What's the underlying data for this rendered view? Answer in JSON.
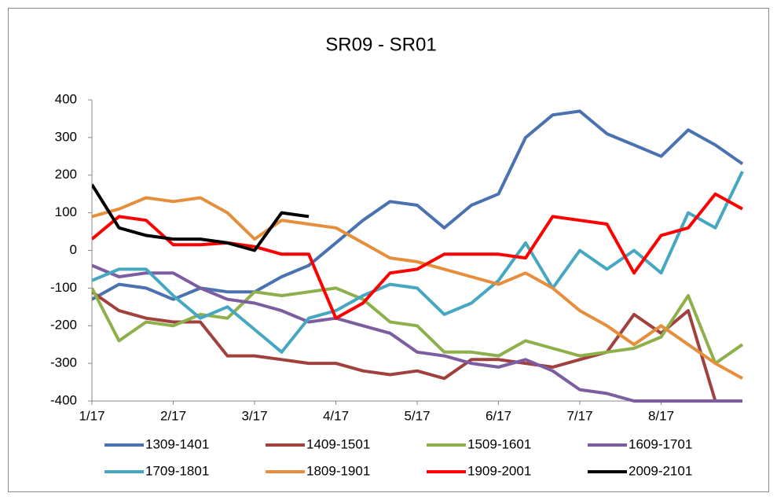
{
  "chart_data": {
    "type": "line",
    "title": "SR09 - SR01",
    "categories": [
      "1/17",
      null,
      null,
      "2/17",
      null,
      null,
      "3/17",
      null,
      null,
      "4/17",
      null,
      null,
      "5/17",
      null,
      null,
      "6/17",
      null,
      null,
      "7/17",
      null,
      null,
      "8/17",
      null,
      null,
      null
    ],
    "ylim": [
      -400,
      400
    ],
    "yticks": [
      -400,
      -300,
      -200,
      -100,
      0,
      100,
      200,
      300,
      400
    ],
    "grid": false,
    "legend": "bottom",
    "series": [
      {
        "name": "1309-1401",
        "color": "#4a72b0",
        "values": [
          -130,
          -90,
          -100,
          -130,
          -100,
          -110,
          -110,
          -70,
          -40,
          20,
          80,
          130,
          120,
          60,
          120,
          150,
          300,
          360,
          370,
          310,
          280,
          250,
          320,
          280,
          230
        ]
      },
      {
        "name": "1409-1501",
        "color": "#a0413e",
        "values": [
          -110,
          -160,
          -180,
          -190,
          -190,
          -280,
          -280,
          -290,
          -300,
          -300,
          -320,
          -330,
          -320,
          -340,
          -290,
          -290,
          -300,
          -310,
          -290,
          -270,
          -170,
          -220,
          -160,
          -400,
          -400
        ]
      },
      {
        "name": "1509-1601",
        "color": "#8db04b",
        "values": [
          -100,
          -240,
          -190,
          -200,
          -170,
          -180,
          -110,
          -120,
          -110,
          -100,
          -130,
          -190,
          -200,
          -270,
          -270,
          -280,
          -240,
          -260,
          -280,
          -270,
          -260,
          -230,
          -120,
          -300,
          -250
        ]
      },
      {
        "name": "1609-1701",
        "color": "#7b5da0",
        "values": [
          -40,
          -70,
          -60,
          -60,
          -100,
          -130,
          -140,
          -160,
          -190,
          -180,
          -200,
          -220,
          -270,
          -280,
          -300,
          -310,
          -290,
          -320,
          -370,
          -380,
          -400,
          -400,
          -400,
          -400,
          -400
        ]
      },
      {
        "name": "1709-1801",
        "color": "#46a7c0",
        "values": [
          -80,
          -50,
          -50,
          -120,
          -180,
          -150,
          -210,
          -270,
          -180,
          -160,
          -120,
          -90,
          -100,
          -170,
          -140,
          -80,
          20,
          -100,
          0,
          -50,
          0,
          -60,
          100,
          60,
          210
        ]
      },
      {
        "name": "1809-1901",
        "color": "#e58f3d",
        "values": [
          90,
          110,
          140,
          130,
          140,
          100,
          30,
          80,
          70,
          60,
          20,
          -20,
          -30,
          -50,
          -70,
          -90,
          -60,
          -100,
          -160,
          -200,
          -250,
          -200,
          -250,
          -300,
          -340
        ]
      },
      {
        "name": "1909-2001",
        "color": "#ff0000",
        "values": [
          30,
          90,
          80,
          15,
          15,
          20,
          10,
          -10,
          -10,
          -180,
          -140,
          -60,
          -50,
          -10,
          -10,
          -10,
          -20,
          90,
          80,
          70,
          -60,
          40,
          60,
          150,
          110
        ]
      },
      {
        "name": "2009-2101",
        "color": "#000000",
        "values": [
          175,
          60,
          40,
          30,
          30,
          20,
          0,
          100,
          90,
          null,
          null,
          null,
          null,
          null,
          null,
          null,
          null,
          null,
          null,
          null,
          null,
          null,
          null,
          null,
          null
        ]
      }
    ]
  }
}
